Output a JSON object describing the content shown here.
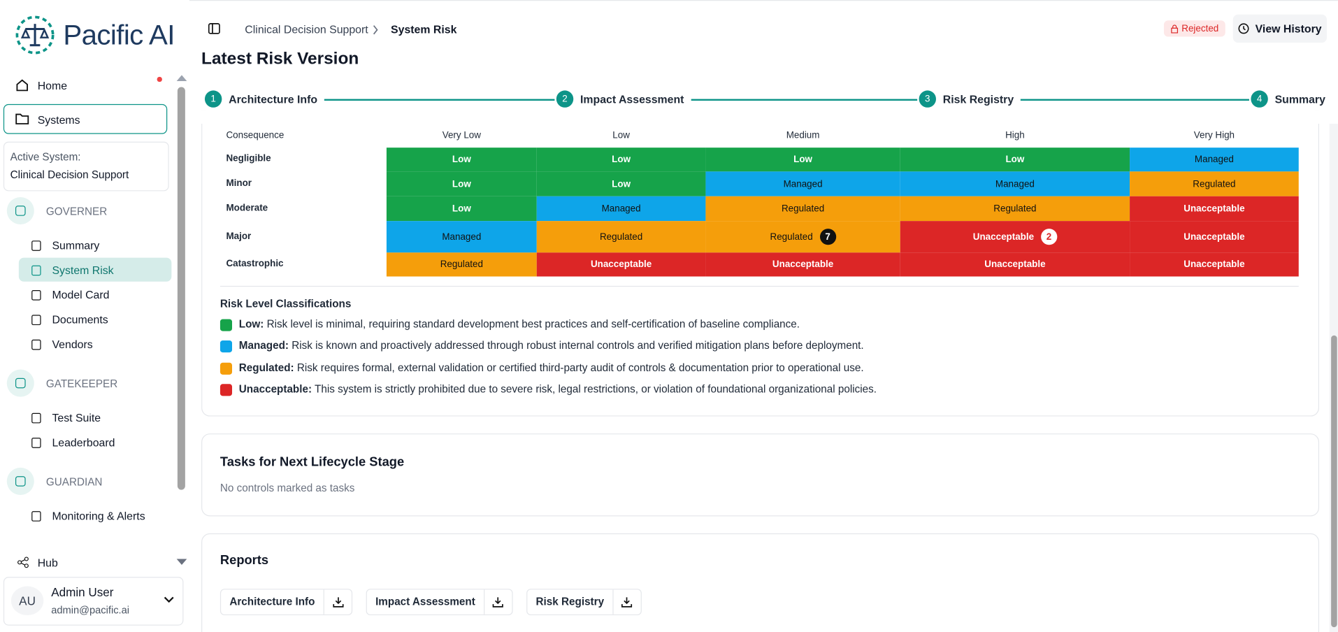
{
  "sidebar": {
    "brand": "Pacific AI",
    "home": "Home",
    "systems": "Systems",
    "active_system_label": "Active System:",
    "active_system": "Clinical Decision Support",
    "sections": [
      {
        "title": "GOVERNER",
        "items": [
          "Summary",
          "System Risk",
          "Model Card",
          "Documents",
          "Vendors"
        ]
      },
      {
        "title": "GATEKEEPER",
        "items": [
          "Test Suite",
          "Leaderboard"
        ]
      },
      {
        "title": "GUARDIAN",
        "items": [
          "Monitoring & Alerts"
        ]
      }
    ],
    "active_item": "System Risk",
    "hub": "Hub",
    "user": {
      "initials": "AU",
      "name": "Admin User",
      "email": "admin@pacific.ai"
    }
  },
  "header": {
    "breadcrumb": [
      "Clinical Decision Support",
      "System Risk"
    ],
    "status": "Rejected",
    "history_button": "View History"
  },
  "title": "Latest Risk Version",
  "steps": [
    {
      "number": "1",
      "label": "Architecture Info"
    },
    {
      "number": "2",
      "label": "Impact Assessment"
    },
    {
      "number": "3",
      "label": "Risk Registry"
    },
    {
      "number": "4",
      "label": "Summary"
    }
  ],
  "risk_matrix": {
    "corner": "Consequence",
    "columns": [
      "Very Low",
      "Low",
      "Medium",
      "High",
      "Very High"
    ],
    "rows": [
      {
        "label": "Negligible",
        "cells": [
          {
            "label": "Low",
            "color": "#16a34a"
          },
          {
            "label": "Low",
            "color": "#16a34a"
          },
          {
            "label": "Low",
            "color": "#16a34a"
          },
          {
            "label": "Low",
            "color": "#16a34a"
          },
          {
            "label": "Managed",
            "color": "#0ea5e9"
          }
        ]
      },
      {
        "label": "Minor",
        "cells": [
          {
            "label": "Low",
            "color": "#16a34a"
          },
          {
            "label": "Low",
            "color": "#16a34a"
          },
          {
            "label": "Managed",
            "color": "#0ea5e9"
          },
          {
            "label": "Managed",
            "color": "#0ea5e9"
          },
          {
            "label": "Regulated",
            "color": "#f59e0b"
          }
        ]
      },
      {
        "label": "Moderate",
        "cells": [
          {
            "label": "Low",
            "color": "#16a34a"
          },
          {
            "label": "Managed",
            "color": "#0ea5e9"
          },
          {
            "label": "Regulated",
            "color": "#f59e0b"
          },
          {
            "label": "Regulated",
            "color": "#f59e0b"
          },
          {
            "label": "Unacceptable",
            "color": "#dc2626"
          }
        ]
      },
      {
        "label": "Major",
        "cells": [
          {
            "label": "Managed",
            "color": "#0ea5e9"
          },
          {
            "label": "Regulated",
            "color": "#f59e0b"
          },
          {
            "label": "Regulated",
            "color": "#f59e0b",
            "badge": "7"
          },
          {
            "label": "Unacceptable",
            "color": "#dc2626",
            "badge": "2"
          },
          {
            "label": "Unacceptable",
            "color": "#dc2626"
          }
        ]
      },
      {
        "label": "Catastrophic",
        "cells": [
          {
            "label": "Regulated",
            "color": "#f59e0b"
          },
          {
            "label": "Unacceptable",
            "color": "#dc2626"
          },
          {
            "label": "Unacceptable",
            "color": "#dc2626"
          },
          {
            "label": "Unacceptable",
            "color": "#dc2626"
          },
          {
            "label": "Unacceptable",
            "color": "#dc2626"
          }
        ]
      }
    ]
  },
  "legend": {
    "title": "Risk Level Classifications",
    "items": [
      {
        "label": "Low:",
        "color": "#16a34a",
        "description": "Risk level is minimal, requiring standard development best practices and self-certification of baseline compliance."
      },
      {
        "label": "Managed:",
        "color": "#0ea5e9",
        "description": "Risk is known and proactively addressed through robust internal controls and verified mitigation plans before deployment."
      },
      {
        "label": "Regulated:",
        "color": "#f59e0b",
        "description": "Risk requires formal, external validation or certified third-party audit of controls & documentation prior to operational use."
      },
      {
        "label": "Unacceptable:",
        "color": "#dc2626",
        "description": "This system is strictly prohibited due to severe risk, legal restrictions, or violation of foundational organizational policies."
      }
    ]
  },
  "tasks": {
    "title": "Tasks for Next Lifecycle Stage",
    "empty": "No controls marked as tasks"
  },
  "reports": {
    "title": "Reports",
    "files": [
      "Architecture Info",
      "Impact Assessment",
      "Risk Registry"
    ]
  }
}
